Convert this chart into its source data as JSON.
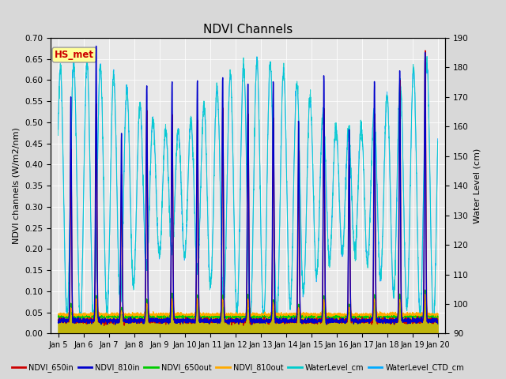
{
  "title": "NDVI Channels",
  "ylabel_left": "NDVI channels (W/m2/nm)",
  "ylabel_right": "Water Level (cm)",
  "ylim_left": [
    0.0,
    0.7
  ],
  "ylim_right": [
    90,
    190
  ],
  "yticks_left": [
    0.0,
    0.05,
    0.1,
    0.15,
    0.2,
    0.25,
    0.3,
    0.35,
    0.4,
    0.45,
    0.5,
    0.55,
    0.6,
    0.65,
    0.7
  ],
  "yticks_right": [
    90,
    100,
    110,
    120,
    130,
    140,
    150,
    160,
    170,
    180,
    190
  ],
  "annotation_text": "HS_met",
  "annotation_color": "#cc0000",
  "annotation_bg": "#ffff99",
  "legend_entries": [
    {
      "label": "NDVI_650in",
      "color": "#cc0000"
    },
    {
      "label": "NDVI_810in",
      "color": "#0000cc"
    },
    {
      "label": "NDVI_650out",
      "color": "#00cc00"
    },
    {
      "label": "NDVI_810out",
      "color": "#ffaa00"
    },
    {
      "label": "WaterLevel_cm",
      "color": "#00cccc"
    },
    {
      "label": "WaterLevel_CTD_cm",
      "color": "#00aaff"
    }
  ],
  "bg_color": "#d8d8d8",
  "plot_bg": "#e8e8e8",
  "figsize": [
    6.4,
    4.8
  ],
  "dpi": 100
}
